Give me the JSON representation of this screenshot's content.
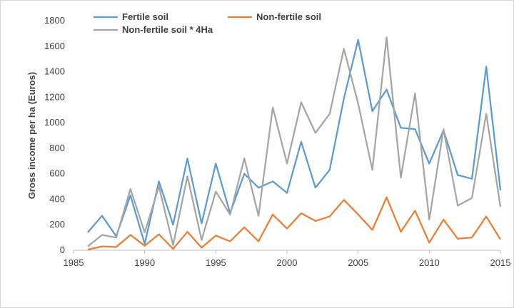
{
  "chart_data": {
    "type": "line",
    "title": "",
    "xlabel": "",
    "ylabel": "Gross income per ha (Euros)",
    "xlim": [
      1985,
      2015
    ],
    "ylim": [
      0,
      1800
    ],
    "xticks": [
      1985,
      1990,
      1995,
      2000,
      2005,
      2010,
      2015
    ],
    "yticks": [
      0,
      200,
      400,
      600,
      800,
      1000,
      1200,
      1400,
      1600,
      1800
    ],
    "grid": false,
    "legend_position": "top",
    "x": [
      1986,
      1987,
      1988,
      1989,
      1990,
      1991,
      1992,
      1993,
      1994,
      1995,
      1996,
      1997,
      1998,
      1999,
      2000,
      2001,
      2002,
      2003,
      2004,
      2005,
      2006,
      2007,
      2008,
      2009,
      2010,
      2011,
      2012,
      2013,
      2014,
      2015
    ],
    "series": [
      {
        "name": "Fertile soil",
        "color": "#5b9bd5",
        "values": [
          140,
          270,
          110,
          430,
          50,
          540,
          200,
          720,
          210,
          680,
          290,
          600,
          490,
          540,
          450,
          850,
          490,
          630,
          1190,
          1650,
          1090,
          1260,
          960,
          950,
          680,
          940,
          590,
          560,
          1440,
          470
        ]
      },
      {
        "name": "Non-fertile soil",
        "color": "#ed7d31",
        "values": [
          5,
          30,
          25,
          120,
          35,
          125,
          10,
          145,
          20,
          115,
          70,
          180,
          70,
          280,
          170,
          290,
          230,
          265,
          395,
          280,
          160,
          415,
          145,
          310,
          60,
          240,
          90,
          100,
          265,
          85
        ]
      },
      {
        "name": "Non-fertile soil * 4Ha",
        "color": "#a5a5a5",
        "values": [
          30,
          120,
          100,
          480,
          140,
          500,
          40,
          580,
          80,
          460,
          280,
          720,
          270,
          1120,
          680,
          1160,
          920,
          1070,
          1580,
          1150,
          630,
          1670,
          570,
          1230,
          240,
          950,
          350,
          410,
          1070,
          340
        ]
      }
    ]
  }
}
